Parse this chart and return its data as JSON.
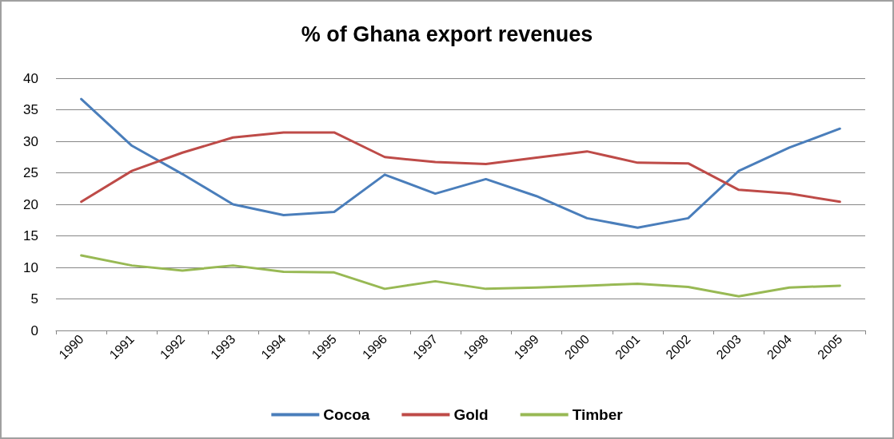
{
  "chart_data": {
    "type": "line",
    "title": "% of Ghana export revenues",
    "categories": [
      "1990",
      "1991",
      "1992",
      "1993",
      "1994",
      "1995",
      "1996",
      "1997",
      "1998",
      "1999",
      "2000",
      "2001",
      "2002",
      "2003",
      "2004",
      "2005"
    ],
    "series": [
      {
        "name": "Cocoa",
        "color": "#4a7ebb",
        "values": [
          36.7,
          29.3,
          24.8,
          20,
          18.3,
          18.8,
          24.7,
          21.7,
          24,
          21.3,
          17.8,
          16.3,
          17.8,
          25.3,
          29,
          32
        ]
      },
      {
        "name": "Gold",
        "color": "#be4b48",
        "values": [
          20.4,
          25.3,
          28.2,
          30.6,
          31.4,
          31.4,
          27.5,
          26.7,
          26.4,
          27.4,
          28.4,
          26.6,
          26.5,
          22.3,
          21.7,
          20.4
        ]
      },
      {
        "name": "Timber",
        "color": "#98b954",
        "values": [
          11.9,
          10.3,
          9.5,
          10.3,
          9.3,
          9.2,
          6.6,
          7.8,
          6.6,
          6.8,
          7.1,
          7.4,
          6.9,
          5.4,
          6.8,
          7.1
        ]
      }
    ],
    "ylim": [
      0,
      40
    ],
    "yticks": [
      0,
      5,
      10,
      15,
      20,
      25,
      30,
      35,
      40
    ],
    "grid": "y",
    "legend": "bottom",
    "marker": "none",
    "line_style": "solid"
  }
}
